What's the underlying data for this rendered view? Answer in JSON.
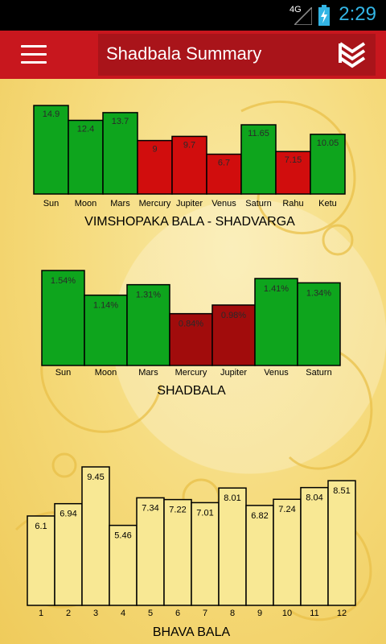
{
  "status_bar": {
    "network": "4G",
    "time": "2:29"
  },
  "action_bar": {
    "title": "Shadbala Summary"
  },
  "icons": {
    "menu": "hamburger-menu-icon",
    "layers": "layers-chevron-icon",
    "battery": "battery-charging-icon",
    "signal": "signal-icon"
  },
  "colors": {
    "green": "#0ea51d",
    "red": "#d10d0d",
    "dark_red": "#a10c0c",
    "pale": "#f8e894",
    "accent": "#c8171e"
  },
  "chart_data": [
    {
      "type": "bar",
      "title": "VIMSHOPAKA BALA - SHADVARGA",
      "categories": [
        "Sun",
        "Moon",
        "Mars",
        "Mercury",
        "Jupiter",
        "Venus",
        "Saturn",
        "Rahu",
        "Ketu"
      ],
      "values": [
        14.9,
        12.4,
        13.7,
        9,
        9.7,
        6.7,
        11.65,
        7.15,
        10.05
      ],
      "value_labels": [
        "14.9",
        "12.4",
        "13.7",
        "9",
        "9.7",
        "6.7",
        "11.65",
        "7.15",
        "10.05"
      ],
      "bar_colors": [
        "green",
        "green",
        "green",
        "red",
        "red",
        "red",
        "green",
        "red",
        "green"
      ]
    },
    {
      "type": "bar",
      "title": "SHADBALA",
      "categories": [
        "Sun",
        "Moon",
        "Mars",
        "Mercury",
        "Jupiter",
        "Venus",
        "Saturn"
      ],
      "values": [
        1.54,
        1.14,
        1.31,
        0.84,
        0.98,
        1.41,
        1.34
      ],
      "value_labels": [
        "1.54%",
        "1.14%",
        "1.31%",
        "0.84%",
        "0.98%",
        "1.41%",
        "1.34%"
      ],
      "bar_colors": [
        "green",
        "green",
        "green",
        "dark_red",
        "dark_red",
        "green",
        "green"
      ]
    },
    {
      "type": "bar",
      "title": "BHAVA BALA",
      "categories": [
        "1",
        "2",
        "3",
        "4",
        "5",
        "6",
        "7",
        "8",
        "9",
        "10",
        "11",
        "12"
      ],
      "values": [
        6.1,
        6.94,
        9.45,
        5.46,
        7.34,
        7.22,
        7.01,
        8.01,
        6.82,
        7.24,
        8.04,
        8.51
      ],
      "value_labels": [
        "6.1",
        "6.94",
        "9.45",
        "5.46",
        "7.34",
        "7.22",
        "7.01",
        "8.01",
        "6.82",
        "7.24",
        "8.04",
        "8.51"
      ],
      "bar_colors": [
        "pale",
        "pale",
        "pale",
        "pale",
        "pale",
        "pale",
        "pale",
        "pale",
        "pale",
        "pale",
        "pale",
        "pale"
      ]
    }
  ]
}
